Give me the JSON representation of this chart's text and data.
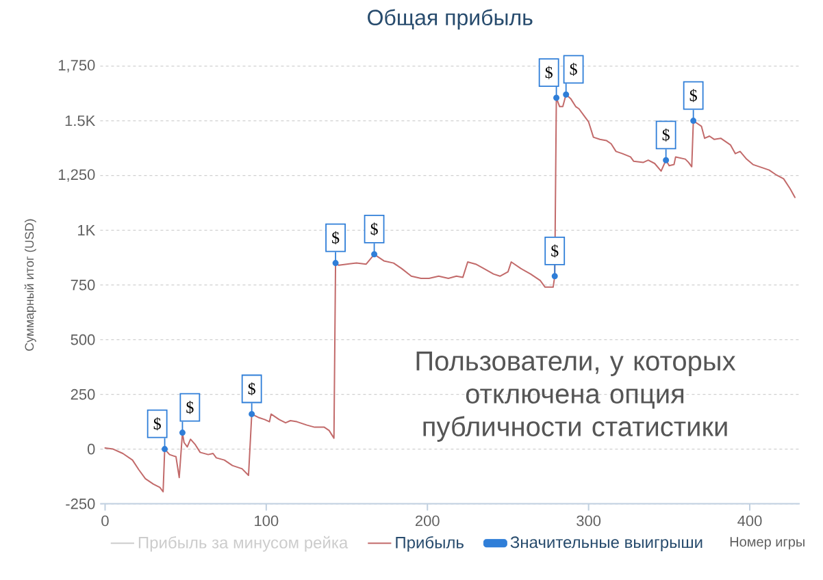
{
  "chart_data": {
    "type": "line",
    "title": "Общая прибыль",
    "xlabel": "Номер игры",
    "ylabel": "Суммарный итог (USD)",
    "xlim": [
      -3,
      431
    ],
    "xticks": [
      0,
      100,
      200,
      300,
      400
    ],
    "ylim": [
      -250,
      1750
    ],
    "yticks": [
      -250,
      0,
      250,
      500,
      750,
      {
        "value": 1000,
        "label": "1K"
      },
      {
        "value": 1250,
        "label": "1,250"
      },
      {
        "value": 1500,
        "label": "1.5K"
      },
      {
        "value": 1750,
        "label": "1,750"
      }
    ],
    "grid": "y",
    "legend": "bottom",
    "annotations": [
      "Пользователи, у которых отключена опция публичности статистики"
    ],
    "series": [
      {
        "name": "Прибыль за минусом рейка",
        "color": "#cccccc"
      },
      {
        "name": "Прибыль",
        "color": "#c26a6a",
        "x": [
          0,
          5,
          11,
          17,
          21,
          25,
          30,
          34,
          36,
          37,
          40,
          44,
          46,
          48,
          49,
          51,
          53,
          56,
          59,
          64,
          67,
          69,
          74,
          79,
          85,
          89,
          91,
          95,
          99,
          102,
          103,
          108,
          112,
          115,
          119,
          125,
          130,
          136,
          139,
          142,
          143,
          145,
          150,
          156,
          162,
          167,
          173,
          179,
          184,
          190,
          196,
          201,
          207,
          213,
          218,
          222,
          225,
          230,
          235,
          241,
          245,
          250,
          252,
          258,
          264,
          270,
          273,
          278,
          279,
          280,
          282,
          284,
          286,
          289,
          292,
          294,
          297,
          300,
          303,
          307,
          311,
          314,
          317,
          321,
          326,
          328,
          334,
          337,
          341,
          345,
          348,
          350,
          353,
          354,
          360,
          362,
          364,
          365,
          370,
          372,
          375,
          378,
          382,
          388,
          391,
          394,
          398,
          402,
          408,
          412,
          416,
          421,
          425,
          428
        ],
        "values": [
          5,
          0,
          -20,
          -50,
          -95,
          -135,
          -160,
          -175,
          -195,
          0,
          -25,
          -35,
          -130,
          75,
          30,
          10,
          45,
          20,
          -15,
          -25,
          -20,
          -40,
          -50,
          -75,
          -90,
          -120,
          160,
          145,
          135,
          125,
          160,
          135,
          120,
          130,
          125,
          110,
          100,
          100,
          85,
          50,
          850,
          840,
          845,
          850,
          845,
          890,
          860,
          850,
          825,
          790,
          780,
          780,
          790,
          780,
          790,
          785,
          855,
          845,
          825,
          800,
          790,
          810,
          855,
          825,
          800,
          770,
          740,
          740,
          790,
          1605,
          1565,
          1565,
          1620,
          1600,
          1565,
          1555,
          1525,
          1495,
          1425,
          1415,
          1410,
          1395,
          1360,
          1350,
          1335,
          1315,
          1310,
          1320,
          1305,
          1270,
          1320,
          1295,
          1300,
          1335,
          1325,
          1310,
          1290,
          1500,
          1475,
          1420,
          1430,
          1415,
          1420,
          1390,
          1350,
          1360,
          1325,
          1300,
          1285,
          1275,
          1255,
          1235,
          1190,
          1150
        ]
      },
      {
        "name": "Значительные выигрыши",
        "type": "scatter",
        "color": "#2f7ed8",
        "x": [
          37,
          48,
          91,
          143,
          167,
          279,
          280,
          286,
          348,
          365
        ],
        "values": [
          0,
          75,
          160,
          850,
          890,
          790,
          1605,
          1620,
          1320,
          1500
        ],
        "value_labels": [
          "$",
          "$",
          "$",
          "$",
          "$",
          "$",
          "$",
          "$",
          "$",
          "$"
        ]
      }
    ]
  }
}
